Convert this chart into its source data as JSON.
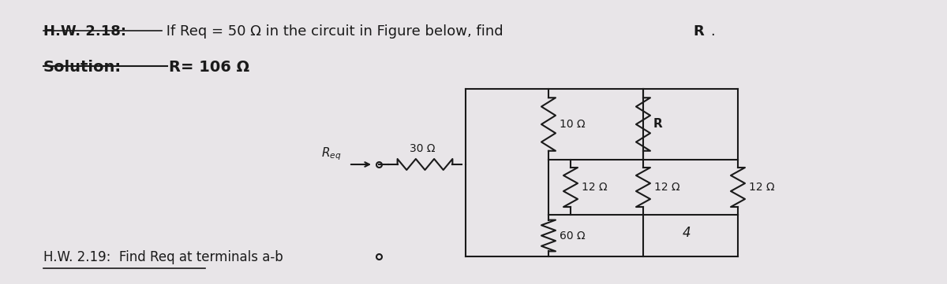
{
  "bg_color": "#e8e5e8",
  "title_hw": "H.W. 2.18:",
  "title_rest": " If Req = 50 Ω in the circuit in Figure below, find ",
  "title_R": "R",
  "title_dot": ".",
  "solution_label": "Solution:",
  "solution_value": "R= 106 Ω",
  "bottom_text": "H.W. 2.19:  Find Req at terminals a-b",
  "label_30": "30 Ω",
  "label_10": "10 Ω",
  "label_60": "60 Ω",
  "label_R": "R",
  "label_12": "12 Ω",
  "label_4": "4",
  "label_Req": "$R_{eq}$",
  "text_color": "#1a1a1a",
  "line_color": "#1a1a1a"
}
